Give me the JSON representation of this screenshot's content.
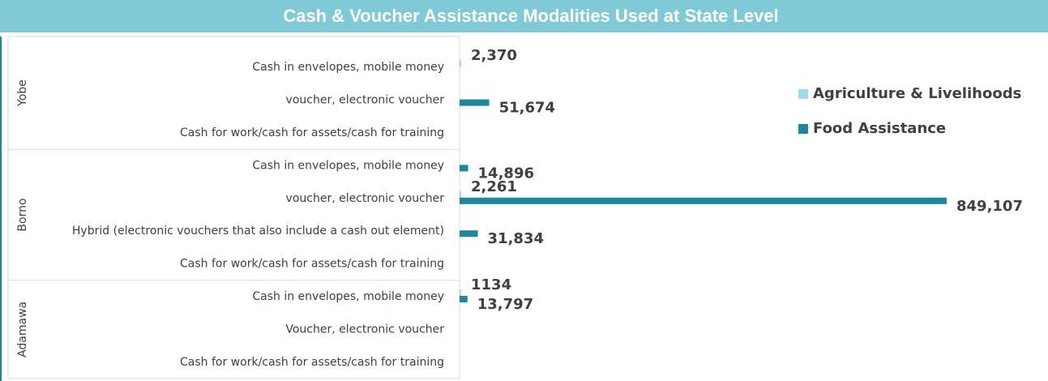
{
  "chart_data": {
    "type": "bar",
    "orientation": "horizontal",
    "title": "Cash & Voucher Assistance Modalities Used at State Level",
    "groups": [
      {
        "name": "Yobe",
        "size": 3
      },
      {
        "name": "Borno",
        "size": 4
      },
      {
        "name": "Adamawa",
        "size": 3
      }
    ],
    "categories": [
      "Cash in envelopes, mobile money",
      "voucher, electronic voucher",
      "Cash for work/cash for assets/cash for training",
      "Cash in envelopes, mobile money",
      "voucher, electronic voucher",
      "Hybrid (electronic vouchers that also include a cash out element)",
      "Cash for work/cash for assets/cash for training",
      "Cash in envelopes, mobile money",
      "Voucher, electronic voucher",
      "Cash for work/cash for assets/cash for training"
    ],
    "series": [
      {
        "name": "Agriculture & Livelihoods",
        "color": "#9fdbe6",
        "values": [
          2370,
          null,
          null,
          null,
          2261,
          null,
          null,
          1134,
          null,
          null
        ],
        "value_labels": [
          "2,370",
          null,
          null,
          null,
          "2,261",
          null,
          null,
          null,
          null,
          null
        ]
      },
      {
        "name": "Food Assistance",
        "color": "#1e879b",
        "values": [
          null,
          51674,
          null,
          14896,
          849107,
          31834,
          null,
          13797,
          null,
          null
        ],
        "value_labels": [
          null,
          "51,674",
          null,
          "14,896",
          "849,107",
          "31,834",
          null,
          "13,797",
          null,
          null
        ]
      }
    ],
    "legend": "right"
  }
}
